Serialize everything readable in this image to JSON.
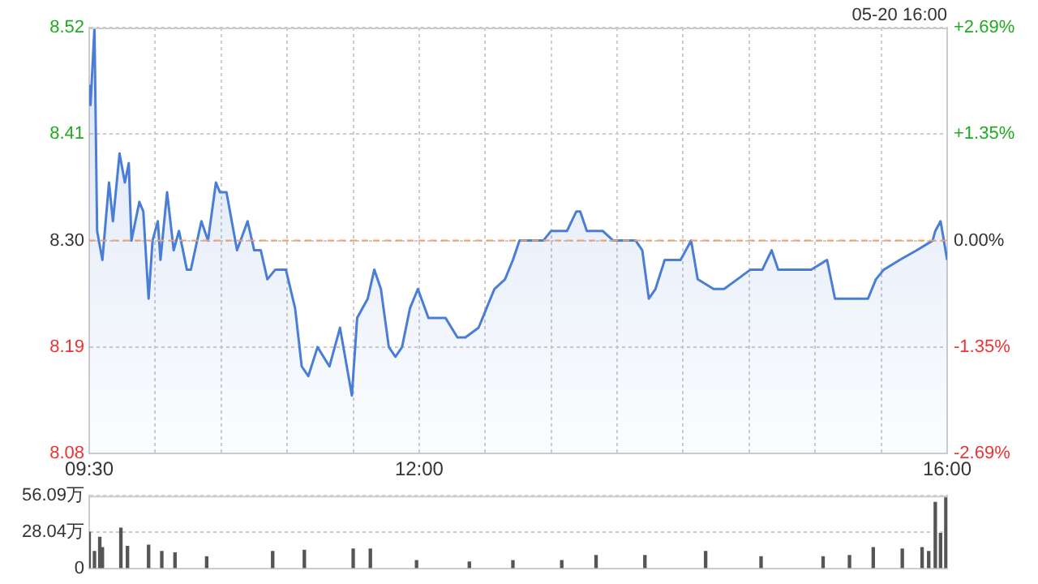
{
  "chart_data": [
    {
      "type": "area",
      "color": "#4a7ed6",
      "annotations": [
        "05-20 16:00"
      ],
      "x": [
        9.5,
        9.51,
        9.54,
        9.56,
        9.6,
        9.65,
        9.68,
        9.73,
        9.77,
        9.8,
        9.82,
        9.88,
        9.91,
        9.95,
        9.98,
        10.02,
        10.04,
        10.09,
        10.14,
        10.18,
        10.24,
        10.27,
        10.35,
        10.4,
        10.46,
        10.49,
        10.54,
        10.62,
        10.7,
        10.75,
        10.8,
        10.85,
        10.91,
        10.99,
        11.06,
        11.11,
        11.16,
        11.23,
        11.32,
        11.4,
        11.49,
        11.53,
        11.61,
        11.66,
        11.71,
        11.77,
        11.82,
        11.87,
        11.93,
        11.99,
        12.07,
        12.14,
        12.2,
        12.29,
        12.35,
        12.45,
        12.51,
        12.57,
        12.65,
        12.71,
        12.76,
        12.85,
        12.94,
        13.0,
        13.06,
        13.12,
        13.19,
        13.22,
        13.27,
        13.35,
        13.39,
        13.47,
        13.55,
        13.64,
        13.69,
        13.74,
        13.79,
        13.86,
        13.98,
        14.06,
        14.11,
        14.23,
        14.31,
        14.41,
        14.51,
        14.6,
        14.67,
        14.72,
        14.84,
        14.97,
        15.09,
        15.15,
        15.27,
        15.4,
        15.46,
        15.52,
        15.64,
        15.77,
        15.89,
        15.91,
        15.95,
        16.0
      ],
      "values": [
        8.46,
        8.44,
        8.52,
        8.31,
        8.28,
        8.36,
        8.32,
        8.39,
        8.36,
        8.38,
        8.3,
        8.34,
        8.33,
        8.24,
        8.3,
        8.32,
        8.28,
        8.35,
        8.29,
        8.31,
        8.27,
        8.27,
        8.32,
        8.3,
        8.36,
        8.35,
        8.35,
        8.29,
        8.32,
        8.29,
        8.29,
        8.26,
        8.27,
        8.27,
        8.23,
        8.17,
        8.16,
        8.19,
        8.17,
        8.21,
        8.14,
        8.22,
        8.24,
        8.27,
        8.25,
        8.19,
        8.18,
        8.19,
        8.23,
        8.25,
        8.22,
        8.22,
        8.22,
        8.2,
        8.2,
        8.21,
        8.23,
        8.25,
        8.26,
        8.28,
        8.3,
        8.3,
        8.3,
        8.31,
        8.31,
        8.31,
        8.33,
        8.33,
        8.31,
        8.31,
        8.31,
        8.3,
        8.3,
        8.3,
        8.29,
        8.24,
        8.25,
        8.28,
        8.28,
        8.3,
        8.26,
        8.25,
        8.25,
        8.26,
        8.27,
        8.27,
        8.29,
        8.27,
        8.27,
        8.27,
        8.28,
        8.24,
        8.24,
        8.24,
        8.26,
        8.27,
        8.28,
        8.29,
        8.3,
        8.31,
        8.32,
        8.28
      ],
      "xlim": [
        9.5,
        16
      ],
      "xticks": [
        {
          "value": 9.5,
          "label": "09:30"
        },
        {
          "value": 10,
          "label": null
        },
        {
          "value": 10.5,
          "label": null
        },
        {
          "value": 11,
          "label": null
        },
        {
          "value": 11.5,
          "label": null
        },
        {
          "value": 12,
          "label": "12:00"
        },
        {
          "value": 12.5,
          "label": null
        },
        {
          "value": 13,
          "label": null
        },
        {
          "value": 13.5,
          "label": null
        },
        {
          "value": 14,
          "label": null
        },
        {
          "value": 14.5,
          "label": null
        },
        {
          "value": 15,
          "label": null
        },
        {
          "value": 15.5,
          "label": null
        },
        {
          "value": 16,
          "label": "16:00"
        }
      ],
      "ylim": [
        8.08,
        8.52
      ],
      "yticks": [
        8.08,
        8.19,
        {
          "value": 8.3,
          "label": "8.30"
        },
        8.41,
        8.52
      ],
      "y2lim": [
        -2.69,
        2.69
      ],
      "y2ticks": [
        {
          "value": -2.69,
          "label": "-2.69%"
        },
        {
          "value": -1.35,
          "label": "-1.35%"
        },
        {
          "value": 0,
          "label": "0.00%"
        },
        {
          "value": 1.35,
          "label": "+1.35%"
        },
        {
          "value": 2.69,
          "label": "+2.69%"
        }
      ],
      "ref_lines": [
        {
          "axis": "y",
          "value": 8.3,
          "color": "#f0a070",
          "line_style": "dashed"
        }
      ],
      "grid": true
    },
    {
      "type": "bar",
      "color": "#555555",
      "x": [
        9.5,
        9.54,
        9.58,
        9.6,
        9.74,
        9.79,
        9.95,
        10.05,
        10.15,
        10.39,
        10.89,
        11.13,
        11.5,
        11.63,
        11.98,
        12.38,
        12.71,
        13.08,
        13.34,
        13.71,
        14.17,
        14.59,
        15.06,
        15.26,
        15.44,
        15.66,
        15.81,
        15.86,
        15.91,
        15.95,
        15.99
      ],
      "values": [
        28,
        13,
        24,
        16,
        31,
        17,
        18,
        13,
        12,
        9,
        13,
        14,
        15,
        15,
        6,
        5,
        6,
        6,
        10,
        10,
        13,
        9,
        9,
        10,
        16,
        15,
        16,
        13,
        51,
        27,
        56
      ],
      "xlim": [
        9.5,
        16
      ],
      "ylim": [
        0,
        56.09
      ],
      "yticks": [
        0,
        {
          "value": 28.04,
          "label": "28.04万"
        },
        {
          "value": 56.09,
          "label": "56.09万"
        }
      ],
      "tick_labels": "y",
      "grid": "y"
    }
  ]
}
